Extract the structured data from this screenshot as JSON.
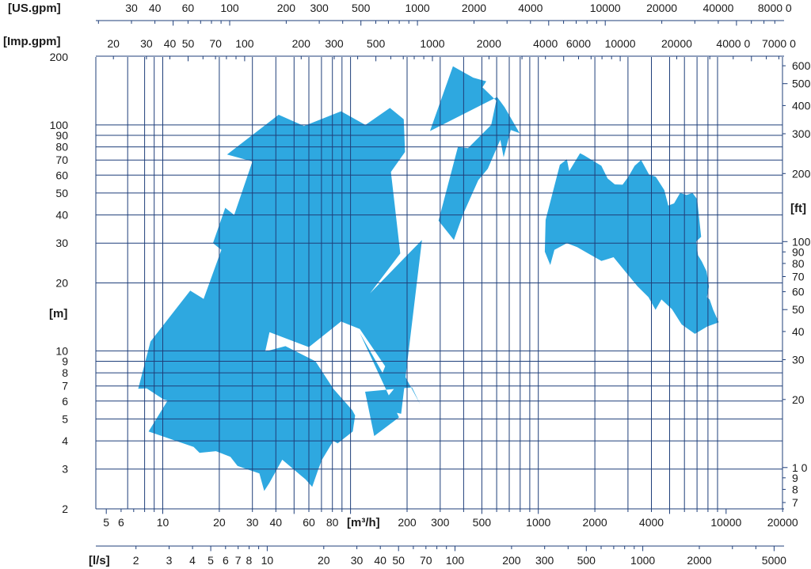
{
  "chart_data": {
    "type": "area",
    "title": "",
    "units": {
      "us_gpm": "[US.gpm]",
      "imp_gpm": "[Imp.gpm]",
      "m3h": "[m³/h]",
      "ls": "[l/s]",
      "m": "[m]",
      "ft": "[ft]"
    },
    "x_scale": "log",
    "y_scale": "log",
    "xlim": [
      4.4,
      20000
    ],
    "ylim": [
      2,
      200
    ],
    "grid": true,
    "color": "#2ea8e0",
    "axes": {
      "us_gpm": {
        "ticks": [
          {
            "v": 30,
            "label": "30"
          },
          {
            "v": 40,
            "label": "40"
          },
          {
            "v": 60,
            "label": "60"
          },
          {
            "v": 100,
            "label": "100"
          },
          {
            "v": 200,
            "label": "200"
          },
          {
            "v": 300,
            "label": "300"
          },
          {
            "v": 500,
            "label": "500"
          },
          {
            "v": 1000,
            "label": "1000"
          },
          {
            "v": 2000,
            "label": "2000"
          },
          {
            "v": 4000,
            "label": "4000"
          },
          {
            "v": 10000,
            "label": "10000"
          },
          {
            "v": 20000,
            "label": "20000"
          },
          {
            "v": 40000,
            "label": "40000"
          },
          {
            "v": 80000,
            "label": "8000 0"
          }
        ]
      },
      "imp_gpm": {
        "ticks": [
          {
            "v": 20,
            "label": "20"
          },
          {
            "v": 30,
            "label": "30"
          },
          {
            "v": 40,
            "label": "40"
          },
          {
            "v": 50,
            "label": "50"
          },
          {
            "v": 70,
            "label": "70"
          },
          {
            "v": 100,
            "label": "100"
          },
          {
            "v": 200,
            "label": "200"
          },
          {
            "v": 300,
            "label": "300"
          },
          {
            "v": 500,
            "label": "500"
          },
          {
            "v": 1000,
            "label": "1000"
          },
          {
            "v": 2000,
            "label": "2000"
          },
          {
            "v": 4000,
            "label": "4000"
          },
          {
            "v": 6000,
            "label": "6000"
          },
          {
            "v": 10000,
            "label": "10000"
          },
          {
            "v": 20000,
            "label": "20000"
          },
          {
            "v": 40000,
            "label": "4000 0"
          },
          {
            "v": 70000,
            "label": "7000 0"
          }
        ]
      },
      "m3h": {
        "ticks": [
          {
            "v": 5,
            "label": "5"
          },
          {
            "v": 6,
            "label": "6"
          },
          {
            "v": 10,
            "label": "10"
          },
          {
            "v": 20,
            "label": "20"
          },
          {
            "v": 30,
            "label": "30"
          },
          {
            "v": 40,
            "label": "40"
          },
          {
            "v": 60,
            "label": "60"
          },
          {
            "v": 80,
            "label": "80"
          },
          {
            "v": 200,
            "label": "200"
          },
          {
            "v": 300,
            "label": "300"
          },
          {
            "v": 500,
            "label": "500"
          },
          {
            "v": 1000,
            "label": "1000"
          },
          {
            "v": 2000,
            "label": "2000"
          },
          {
            "v": 4000,
            "label": "4000"
          },
          {
            "v": 10000,
            "label": "10000"
          },
          {
            "v": 20000,
            "label": "20000"
          }
        ]
      },
      "ls": {
        "ticks": [
          {
            "v": 2,
            "label": "2"
          },
          {
            "v": 3,
            "label": "3"
          },
          {
            "v": 4,
            "label": "4"
          },
          {
            "v": 5,
            "label": "5"
          },
          {
            "v": 6,
            "label": "6"
          },
          {
            "v": 7,
            "label": "7"
          },
          {
            "v": 8,
            "label": "8"
          },
          {
            "v": 10,
            "label": "10"
          },
          {
            "v": 20,
            "label": "20"
          },
          {
            "v": 30,
            "label": "30"
          },
          {
            "v": 40,
            "label": "40"
          },
          {
            "v": 50,
            "label": "50"
          },
          {
            "v": 70,
            "label": "70"
          },
          {
            "v": 100,
            "label": "100"
          },
          {
            "v": 200,
            "label": "200"
          },
          {
            "v": 300,
            "label": "300"
          },
          {
            "v": 500,
            "label": "500"
          },
          {
            "v": 1000,
            "label": "1000"
          },
          {
            "v": 2000,
            "label": "2000"
          },
          {
            "v": 5000,
            "label": "5000"
          }
        ]
      },
      "m": {
        "ticks": [
          {
            "v": 2,
            "label": "2"
          },
          {
            "v": 3,
            "label": "3"
          },
          {
            "v": 4,
            "label": "4"
          },
          {
            "v": 5,
            "label": "5"
          },
          {
            "v": 6,
            "label": "6"
          },
          {
            "v": 7,
            "label": "7"
          },
          {
            "v": 8,
            "label": "8"
          },
          {
            "v": 9,
            "label": "9"
          },
          {
            "v": 10,
            "label": "10"
          },
          {
            "v": 20,
            "label": "20"
          },
          {
            "v": 30,
            "label": "30"
          },
          {
            "v": 40,
            "label": "40"
          },
          {
            "v": 50,
            "label": "50"
          },
          {
            "v": 60,
            "label": "60"
          },
          {
            "v": 70,
            "label": "70"
          },
          {
            "v": 80,
            "label": "80"
          },
          {
            "v": 90,
            "label": "90"
          },
          {
            "v": 100,
            "label": "100"
          },
          {
            "v": 200,
            "label": "200"
          }
        ]
      },
      "ft": {
        "ticks": [
          {
            "v": 7,
            "label": "7"
          },
          {
            "v": 8,
            "label": "8"
          },
          {
            "v": 9,
            "label": "9"
          },
          {
            "v": 10,
            "label": "1 0"
          },
          {
            "v": 20,
            "label": "20"
          },
          {
            "v": 30,
            "label": "30"
          },
          {
            "v": 40,
            "label": "40"
          },
          {
            "v": 50,
            "label": "50"
          },
          {
            "v": 60,
            "label": "60"
          },
          {
            "v": 70,
            "label": "70"
          },
          {
            "v": 80,
            "label": "80"
          },
          {
            "v": 90,
            "label": "90"
          },
          {
            "v": 100,
            "label": "100"
          },
          {
            "v": 200,
            "label": "200"
          },
          {
            "v": 300,
            "label": "300"
          },
          {
            "v": 400,
            "label": "400"
          },
          {
            "v": 500,
            "label": "500"
          },
          {
            "v": 600,
            "label": "600"
          }
        ]
      }
    },
    "x_gridlines": [
      6.5,
      8,
      9,
      10,
      20,
      30,
      40,
      50,
      60,
      70,
      80,
      90,
      100,
      200,
      300,
      400,
      500,
      600,
      700,
      800,
      900,
      1000,
      2000,
      3000,
      4000,
      5000,
      6000,
      7000,
      8000,
      9000
    ],
    "y_gridlines": [
      2,
      3,
      4,
      5,
      6,
      7,
      8,
      9,
      10,
      20,
      30,
      40,
      50,
      60,
      70,
      80,
      90,
      100
    ],
    "regions": [
      [
        [
          8.6,
          11
        ],
        [
          14,
          18.5
        ],
        [
          16.5,
          17
        ],
        [
          20.5,
          28
        ],
        [
          18.5,
          30
        ],
        [
          21.5,
          43
        ],
        [
          24,
          40
        ],
        [
          30,
          69
        ],
        [
          22,
          74
        ],
        [
          41.4,
          111
        ],
        [
          56.5,
          99
        ],
        [
          89,
          115
        ],
        [
          120,
          100
        ],
        [
          162,
          119
        ],
        [
          192,
          106
        ],
        [
          195,
          76
        ],
        [
          164,
          62
        ],
        [
          184,
          27
        ],
        [
          127,
          18
        ],
        [
          240,
          31
        ],
        [
          186,
          5.27
        ],
        [
          140,
          5.56
        ],
        [
          178,
          7.1
        ],
        [
          112,
          12.5
        ],
        [
          89,
          13.5
        ],
        [
          60,
          10.4
        ],
        [
          37,
          12.1
        ],
        [
          33,
          7.9
        ],
        [
          25.8,
          7.1
        ],
        [
          15.3,
          6.6
        ],
        [
          13.6,
          5.7
        ],
        [
          10.1,
          6.1
        ],
        [
          8.2,
          6.83
        ],
        [
          7.4,
          6.8
        ]
      ],
      [
        [
          8.4,
          4.4
        ],
        [
          14.6,
          3.76
        ],
        [
          15.7,
          3.54
        ],
        [
          19.2,
          3.6
        ],
        [
          22.9,
          3.4
        ],
        [
          25,
          3.1
        ],
        [
          32.7,
          2.87
        ],
        [
          34.7,
          2.4
        ],
        [
          36.9,
          2.6
        ],
        [
          43.3,
          3.3
        ],
        [
          57.6,
          2.7
        ],
        [
          62.5,
          2.5
        ],
        [
          67.4,
          3
        ],
        [
          70.5,
          3.3
        ],
        [
          81,
          4
        ],
        [
          85.4,
          3.9
        ],
        [
          102.7,
          4.4
        ],
        [
          105.8,
          5.18
        ],
        [
          102,
          5.47
        ],
        [
          81,
          6.8
        ],
        [
          65,
          9
        ],
        [
          45,
          10.5
        ],
        [
          31.5,
          9.7
        ],
        [
          21.9,
          8.4
        ],
        [
          12.3,
          7.3
        ],
        [
          10.7,
          6.1
        ]
      ],
      [
        [
          181.2,
          5.08
        ],
        [
          133.6,
          4.2
        ],
        [
          119.5,
          6.6
        ],
        [
          212.4,
          6.9
        ],
        [
          235,
          5.8
        ],
        [
          179.2,
          8.8
        ],
        [
          168,
          13
        ],
        [
          165,
          10
        ],
        [
          148,
          8
        ],
        [
          112,
          12
        ]
      ],
      [
        [
          264.7,
          94
        ],
        [
          351,
          182
        ],
        [
          450,
          162
        ],
        [
          528,
          156
        ],
        [
          504,
          147
        ],
        [
          597,
          128
        ],
        [
          561,
          100
        ],
        [
          422,
          79
        ],
        [
          373,
          80
        ],
        [
          294,
          37.7
        ],
        [
          355,
          31
        ],
        [
          398,
          40.4
        ],
        [
          479,
          57
        ],
        [
          538,
          64
        ],
        [
          627,
          86
        ],
        [
          653,
          72
        ],
        [
          713,
          95
        ],
        [
          795,
          92
        ],
        [
          660,
          120
        ],
        [
          603,
          133
        ]
      ],
      [
        [
          1093,
          38
        ],
        [
          1302,
          66.6
        ],
        [
          1419,
          70.5
        ],
        [
          1460,
          62.5
        ],
        [
          1668,
          75
        ],
        [
          1748,
          73.5
        ],
        [
          2165,
          66
        ],
        [
          2338,
          58
        ],
        [
          2555,
          54.6
        ],
        [
          2809,
          54.4
        ],
        [
          3016,
          59
        ],
        [
          3255,
          66
        ],
        [
          3527,
          70
        ],
        [
          3884,
          60.4
        ],
        [
          4220,
          59
        ],
        [
          4686,
          51.5
        ],
        [
          4918,
          44
        ],
        [
          5283,
          45
        ],
        [
          5687,
          50
        ],
        [
          6155,
          49
        ],
        [
          6621,
          50
        ],
        [
          7006,
          47
        ],
        [
          7363,
          32
        ],
        [
          6919,
          30.5
        ],
        [
          7089,
          26.5
        ],
        [
          7436,
          24.8
        ],
        [
          7861,
          22.5
        ],
        [
          8108,
          19.3
        ],
        [
          7903,
          17.3
        ],
        [
          8165,
          16.9
        ],
        [
          8529,
          15.2
        ],
        [
          8854,
          14.2
        ],
        [
          9145,
          13.4
        ],
        [
          7905,
          12.8
        ],
        [
          6819,
          11.9
        ],
        [
          5796,
          13.1
        ],
        [
          5152,
          15.3
        ],
        [
          4526,
          16.9
        ],
        [
          4207,
          15.2
        ],
        [
          3860,
          17.3
        ],
        [
          3376,
          19.3
        ],
        [
          2910,
          22.4
        ],
        [
          2516,
          26
        ],
        [
          2167,
          25
        ],
        [
          1857,
          26.9
        ],
        [
          1609,
          28.8
        ],
        [
          1419,
          30
        ],
        [
          1217,
          28
        ],
        [
          1158,
          24
        ],
        [
          1082,
          27.5
        ]
      ]
    ]
  }
}
